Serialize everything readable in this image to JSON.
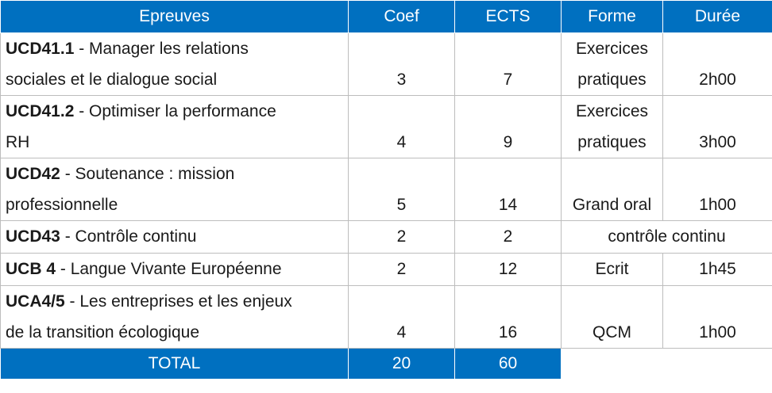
{
  "headers": [
    "Epreuves",
    "Coef",
    "ECTS",
    "Forme",
    "Durée"
  ],
  "rows": [
    {
      "code": "UCD41.1",
      "sep": " - ",
      "line1": "Manager les relations",
      "line2": "sociales et le dialogue social",
      "coef": "3",
      "ects": "7",
      "forme1": "Exercices",
      "forme2": "pratiques",
      "duree": "2h00"
    },
    {
      "code": "UCD41.2",
      "sep": " - ",
      "line1": "Optimiser la performance",
      "line2": "RH",
      "coef": "4",
      "ects": "9",
      "forme1": "Exercices",
      "forme2": "pratiques",
      "duree": "3h00"
    },
    {
      "code": "UCD42",
      "sep": " - ",
      "line1": "Soutenance : mission",
      "line2": "professionnelle",
      "coef": "5",
      "ects": "14",
      "forme1": "",
      "forme2": "Grand oral",
      "duree": "1h00"
    },
    {
      "code": "UCD43",
      "sep": " - ",
      "line1": "Contrôle continu",
      "coef": "2",
      "ects": "2",
      "forme_merged": "contrôle continu"
    },
    {
      "code": "UCB 4",
      "sep": " - ",
      "line1": "Langue Vivante Européenne",
      "coef": "2",
      "ects": "12",
      "forme": "Ecrit",
      "duree": "1h45"
    },
    {
      "code": "UCA4/5",
      "sep": " - ",
      "line1": "Les entreprises et les enjeux",
      "line2": "de la transition écologique",
      "coef": "4",
      "ects": "16",
      "forme1": "",
      "forme2": "QCM",
      "duree": "1h00"
    }
  ],
  "total": {
    "label": "TOTAL",
    "coef": "20",
    "ects": "60"
  },
  "colors": {
    "header_bg": "#0070c0",
    "header_text": "#ffffff",
    "border": "#bdbdbd"
  }
}
